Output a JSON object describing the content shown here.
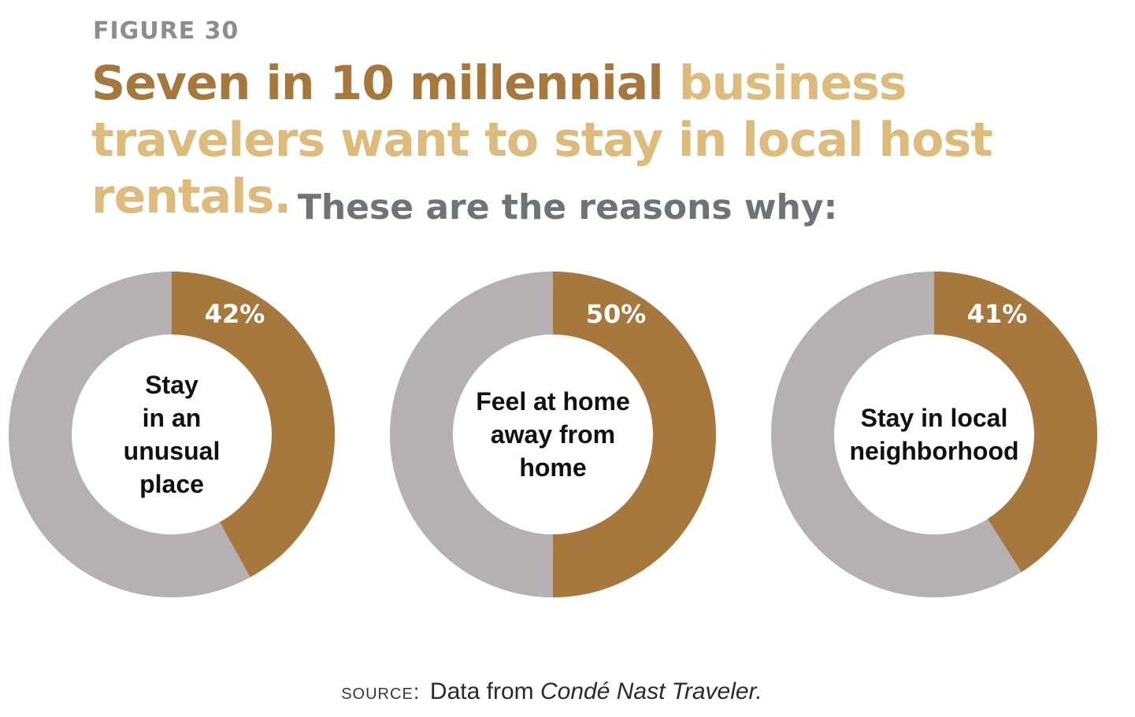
{
  "figure_label": "FIGURE 30",
  "title": {
    "part_dark": "Seven in 10 millennial",
    "part_light": "business travelers want to stay in local host rentals."
  },
  "subtitle": "These are the reasons why:",
  "source": {
    "label": "SOURCE:",
    "text": "Data from",
    "publication": "Condé Nast Traveler."
  },
  "colors": {
    "accent": "#a6783e",
    "remainder": "#b5b0b1",
    "title_light": "#ddbb7d",
    "subtitle": "#6f7378"
  },
  "chart_data": [
    {
      "type": "pie",
      "label": "Stay\nin an\nunusual\nplace",
      "value": 42,
      "value_label": "42%"
    },
    {
      "type": "pie",
      "label": "Feel at home\naway from\nhome",
      "value": 50,
      "value_label": "50%"
    },
    {
      "type": "pie",
      "label": "Stay in local\nneighborhood",
      "value": 41,
      "value_label": "41%"
    }
  ]
}
